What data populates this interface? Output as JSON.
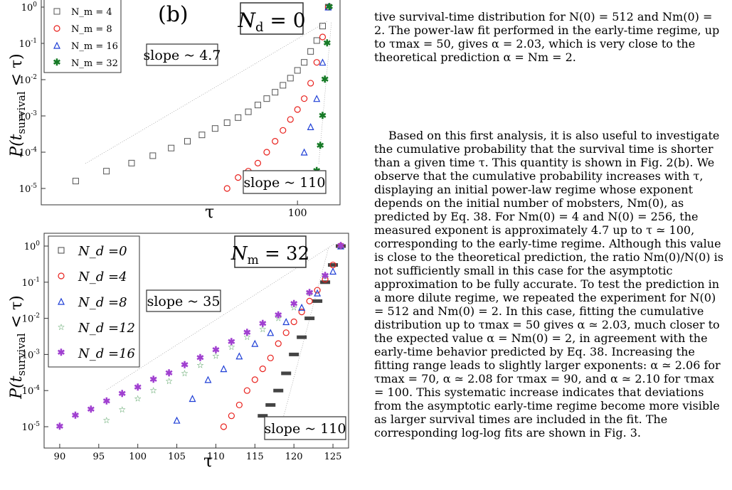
{
  "text": {
    "caption_tail": "tive survival-time distribution for N(0) = 512 and Nm(0) = 2. The power-law fit performed in the early-time regime, up to τmax = 50, gives α = 2.03, which is very close to the theoretical prediction α = Nm = 2.",
    "paragraph": "Based on this first analysis, it is also useful to investigate the cumulative probability that the survival time is shorter than a given time τ. This quantity is shown in Fig. 2(b). We observe that the cumulative probability increases with τ, displaying an initial power-law regime whose exponent depends on the initial number of mobsters, Nm(0), as predicted by Eq. 38. For Nm(0) = 4 and N(0) = 256, the measured exponent is approximately 4.7 up to τ ≃ 100, corresponding to the early-time regime. Although this value is close to the theoretical prediction, the ratio Nm(0)/N(0) is not sufficiently small in this case for the asymptotic approximation to be fully accurate. To test the prediction in a more dilute regime, we repeated the experiment for N(0) = 512 and Nm(0) = 2. In this case, fitting the cumulative distribution up to τmax = 50 gives α ≃ 2.03, much closer to the expected value α = Nm(0) = 2, in agreement with the early-time behavior predicted by Eq. 38. Increasing the fitting range leads to slightly larger exponents: α ≃ 2.06 for τmax = 70, α ≃ 2.08 for τmax = 90, and α ≃ 2.10 for τmax = 100. This systematic increase indicates that deviations from the asymptotic early-time regime become more visible as larger survival times are included in the fit. The corresponding log-log fits are shown in Fig. 3."
  },
  "chart_data": [
    {
      "type": "scatter",
      "panel_label": "(b)",
      "box_label": "N_d = 0",
      "ylabel": "P(t_survival < τ)",
      "xlabel": "τ",
      "x_scale": "log",
      "y_scale": "log",
      "x_tick_labels": [
        "100"
      ],
      "y_tick_labels": [
        "10^0",
        "10^-1",
        "10^-2",
        "10^-3",
        "10^-4",
        "10^-5"
      ],
      "legend_position": "top-left",
      "annotations": [
        "slope ~ 4.7",
        "slope ~ 110"
      ],
      "series": [
        {
          "name": "N_m = 4",
          "marker": "square",
          "color": "#555555",
          "x": [
            20,
            25,
            30,
            35,
            40,
            45,
            50,
            55,
            60,
            65,
            70,
            75,
            80,
            85,
            90,
            95,
            100,
            105,
            110,
            115,
            120,
            125
          ],
          "y": [
            1.6e-05,
            3e-05,
            5e-05,
            8e-05,
            0.00013,
            0.0002,
            0.0003,
            0.00045,
            0.00065,
            0.0009,
            0.0013,
            0.002,
            0.003,
            0.0045,
            0.007,
            0.011,
            0.018,
            0.03,
            0.06,
            0.12,
            0.3,
            1.0
          ]
        },
        {
          "name": "N_m = 8",
          "marker": "circle",
          "color": "#e8201c",
          "x": [
            60,
            65,
            70,
            75,
            80,
            85,
            90,
            95,
            100,
            105,
            110,
            115,
            120,
            125
          ],
          "y": [
            1e-05,
            2e-05,
            3e-05,
            5e-05,
            0.0001,
            0.0002,
            0.0004,
            0.0008,
            0.0015,
            0.003,
            0.008,
            0.03,
            0.15,
            1.0
          ]
        },
        {
          "name": "N_m = 16",
          "marker": "triangle",
          "color": "#1f3fd6",
          "x": [
            100,
            105,
            110,
            115,
            120,
            125
          ],
          "y": [
            2e-05,
            0.0001,
            0.0005,
            0.003,
            0.03,
            1.0
          ]
        },
        {
          "name": "N_m = 32",
          "marker": "asterisk",
          "color": "#167a26",
          "x": [
            115,
            118,
            120,
            122,
            124,
            126
          ],
          "y": [
            3e-05,
            0.00015,
            0.001,
            0.01,
            0.1,
            1.0
          ]
        }
      ]
    },
    {
      "type": "scatter",
      "box_label": "N_m = 32",
      "ylabel": "P(t_survival < τ)",
      "xlabel": "τ",
      "x_scale": "linear",
      "y_scale": "log",
      "xlim": [
        88,
        127
      ],
      "x_tick_labels": [
        "90",
        "95",
        "100",
        "105",
        "110",
        "115",
        "120",
        "125"
      ],
      "y_tick_labels": [
        "10^0",
        "10^-1",
        "10^-2",
        "10^-3",
        "10^-4",
        "10^-5"
      ],
      "legend_position": "top-left",
      "annotations": [
        "slope ~ 35",
        "slope ~ 110"
      ],
      "series": [
        {
          "name": "N_d =0",
          "marker": "square",
          "color": "#444444",
          "x": [
            116,
            117,
            118,
            119,
            120,
            121,
            122,
            123,
            124,
            125,
            126
          ],
          "y": [
            2e-05,
            4e-05,
            0.0001,
            0.0003,
            0.001,
            0.003,
            0.01,
            0.03,
            0.1,
            0.3,
            1.0
          ]
        },
        {
          "name": "N_d =4",
          "marker": "circle",
          "color": "#e8201c",
          "x": [
            111,
            112,
            113,
            114,
            115,
            116,
            117,
            118,
            119,
            120,
            121,
            122,
            123,
            124,
            125,
            126
          ],
          "y": [
            1e-05,
            2e-05,
            4e-05,
            0.0001,
            0.0002,
            0.0004,
            0.0008,
            0.002,
            0.004,
            0.008,
            0.015,
            0.03,
            0.06,
            0.12,
            0.3,
            1.0
          ]
        },
        {
          "name": "N_d =8",
          "marker": "triangle",
          "color": "#1f3fd6",
          "x": [
            105,
            107,
            109,
            111,
            113,
            115,
            117,
            119,
            121,
            123,
            125,
            126
          ],
          "y": [
            1.5e-05,
            6e-05,
            0.0002,
            0.0004,
            0.0009,
            0.002,
            0.004,
            0.008,
            0.02,
            0.05,
            0.2,
            1.0
          ]
        },
        {
          "name": "N_d =12",
          "marker": "star",
          "color": "#2e8b3d",
          "x": [
            96,
            98,
            100,
            102,
            104,
            106,
            108,
            110,
            112,
            114,
            116,
            118,
            120,
            122,
            124,
            126
          ],
          "y": [
            1.5e-05,
            3e-05,
            6e-05,
            0.0001,
            0.00018,
            0.0003,
            0.0005,
            0.0009,
            0.0016,
            0.003,
            0.005,
            0.01,
            0.02,
            0.05,
            0.15,
            1.0
          ]
        },
        {
          "name": "N_d =16",
          "marker": "asterisk",
          "color": "#a040d0",
          "x": [
            90,
            92,
            94,
            96,
            98,
            100,
            102,
            104,
            106,
            108,
            110,
            112,
            114,
            116,
            118,
            120,
            122,
            124,
            126
          ],
          "y": [
            1e-05,
            2e-05,
            3e-05,
            5e-05,
            8e-05,
            0.00012,
            0.0002,
            0.0003,
            0.0005,
            0.0008,
            0.0013,
            0.0022,
            0.004,
            0.007,
            0.012,
            0.025,
            0.05,
            0.15,
            1.0
          ]
        }
      ]
    }
  ]
}
